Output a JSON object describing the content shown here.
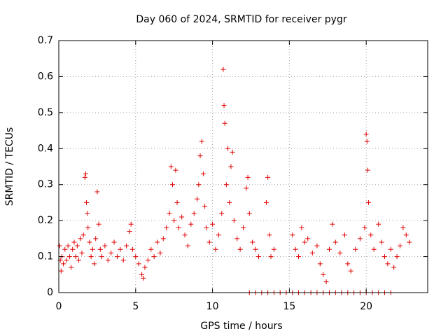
{
  "chart_data": {
    "type": "scatter",
    "title": "Day 060 of 2024, SRMTID for receiver pygr",
    "xlabel": "GPS time / hours",
    "ylabel": "SRMTID / TECUs",
    "xlim": [
      0,
      24
    ],
    "ylim": [
      0,
      0.7
    ],
    "xticks": [
      0,
      5,
      10,
      15,
      20
    ],
    "yticks": [
      0,
      0.1,
      0.2,
      0.3,
      0.4,
      0.5,
      0.6,
      0.7
    ],
    "grid": true,
    "marker": "+",
    "color": "#e00000",
    "series": [
      {
        "name": "SRMTID",
        "points": [
          [
            0.05,
            0.13
          ],
          [
            0.1,
            0.09
          ],
          [
            0.15,
            0.06
          ],
          [
            0.2,
            0.1
          ],
          [
            0.3,
            0.08
          ],
          [
            0.4,
            0.12
          ],
          [
            0.5,
            0.09
          ],
          [
            0.6,
            0.13
          ],
          [
            0.7,
            0.1
          ],
          [
            0.8,
            0.07
          ],
          [
            0.9,
            0.12
          ],
          [
            1.0,
            0.14
          ],
          [
            1.1,
            0.1
          ],
          [
            1.2,
            0.13
          ],
          [
            1.3,
            0.09
          ],
          [
            1.4,
            0.15
          ],
          [
            1.5,
            0.11
          ],
          [
            1.6,
            0.16
          ],
          [
            1.7,
            0.32
          ],
          [
            1.75,
            0.33
          ],
          [
            1.8,
            0.25
          ],
          [
            1.85,
            0.22
          ],
          [
            1.9,
            0.18
          ],
          [
            2.0,
            0.14
          ],
          [
            2.1,
            0.1
          ],
          [
            2.2,
            0.12
          ],
          [
            2.3,
            0.08
          ],
          [
            2.4,
            0.15
          ],
          [
            2.5,
            0.28
          ],
          [
            2.6,
            0.19
          ],
          [
            2.7,
            0.12
          ],
          [
            2.8,
            0.1
          ],
          [
            3.0,
            0.13
          ],
          [
            3.2,
            0.09
          ],
          [
            3.4,
            0.11
          ],
          [
            3.6,
            0.14
          ],
          [
            3.8,
            0.1
          ],
          [
            4.0,
            0.12
          ],
          [
            4.2,
            0.09
          ],
          [
            4.4,
            0.13
          ],
          [
            4.6,
            0.17
          ],
          [
            4.7,
            0.19
          ],
          [
            4.8,
            0.12
          ],
          [
            5.0,
            0.1
          ],
          [
            5.2,
            0.08
          ],
          [
            5.4,
            0.05
          ],
          [
            5.5,
            0.04
          ],
          [
            5.6,
            0.07
          ],
          [
            5.8,
            0.09
          ],
          [
            6.0,
            0.12
          ],
          [
            6.2,
            0.1
          ],
          [
            6.4,
            0.14
          ],
          [
            6.6,
            0.11
          ],
          [
            6.8,
            0.15
          ],
          [
            7.0,
            0.18
          ],
          [
            7.2,
            0.22
          ],
          [
            7.3,
            0.35
          ],
          [
            7.4,
            0.3
          ],
          [
            7.5,
            0.2
          ],
          [
            7.6,
            0.34
          ],
          [
            7.7,
            0.25
          ],
          [
            7.8,
            0.18
          ],
          [
            8.0,
            0.21
          ],
          [
            8.2,
            0.16
          ],
          [
            8.4,
            0.13
          ],
          [
            8.6,
            0.19
          ],
          [
            8.8,
            0.22
          ],
          [
            9.0,
            0.26
          ],
          [
            9.1,
            0.3
          ],
          [
            9.2,
            0.38
          ],
          [
            9.3,
            0.42
          ],
          [
            9.4,
            0.33
          ],
          [
            9.5,
            0.24
          ],
          [
            9.6,
            0.18
          ],
          [
            9.8,
            0.14
          ],
          [
            10.0,
            0.19
          ],
          [
            10.2,
            0.12
          ],
          [
            10.4,
            0.16
          ],
          [
            10.6,
            0.22
          ],
          [
            10.7,
            0.62
          ],
          [
            10.75,
            0.52
          ],
          [
            10.8,
            0.47
          ],
          [
            10.9,
            0.3
          ],
          [
            11.0,
            0.4
          ],
          [
            11.1,
            0.25
          ],
          [
            11.2,
            0.35
          ],
          [
            11.3,
            0.39
          ],
          [
            11.4,
            0.2
          ],
          [
            11.6,
            0.15
          ],
          [
            11.8,
            0.12
          ],
          [
            12.0,
            0.18
          ],
          [
            12.2,
            0.29
          ],
          [
            12.3,
            0.32
          ],
          [
            12.4,
            0.22
          ],
          [
            12.6,
            0.14
          ],
          [
            12.8,
            0.12
          ],
          [
            13.0,
            0.1
          ],
          [
            13.5,
            0.25
          ],
          [
            13.6,
            0.32
          ],
          [
            13.7,
            0.16
          ],
          [
            13.8,
            0.1
          ],
          [
            14.0,
            0.12
          ],
          [
            15.2,
            0.16
          ],
          [
            15.4,
            0.12
          ],
          [
            15.6,
            0.1
          ],
          [
            15.8,
            0.18
          ],
          [
            16.0,
            0.14
          ],
          [
            16.2,
            0.15
          ],
          [
            16.5,
            0.11
          ],
          [
            16.8,
            0.13
          ],
          [
            17.0,
            0.08
          ],
          [
            17.2,
            0.05
          ],
          [
            17.4,
            0.03
          ],
          [
            17.6,
            0.12
          ],
          [
            17.8,
            0.19
          ],
          [
            18.0,
            0.14
          ],
          [
            18.3,
            0.11
          ],
          [
            18.6,
            0.16
          ],
          [
            18.8,
            0.08
          ],
          [
            19.0,
            0.06
          ],
          [
            19.3,
            0.12
          ],
          [
            19.6,
            0.15
          ],
          [
            19.9,
            0.18
          ],
          [
            20.0,
            0.44
          ],
          [
            20.05,
            0.42
          ],
          [
            20.1,
            0.34
          ],
          [
            20.15,
            0.25
          ],
          [
            20.3,
            0.16
          ],
          [
            20.5,
            0.12
          ],
          [
            20.8,
            0.19
          ],
          [
            21.0,
            0.14
          ],
          [
            21.2,
            0.1
          ],
          [
            21.4,
            0.08
          ],
          [
            21.6,
            0.12
          ],
          [
            21.8,
            0.07
          ],
          [
            22.0,
            0.1
          ],
          [
            22.2,
            0.13
          ],
          [
            22.4,
            0.18
          ],
          [
            22.6,
            0.16
          ],
          [
            22.8,
            0.14
          ],
          [
            12.4,
            0.0
          ],
          [
            12.8,
            0.0
          ],
          [
            13.2,
            0.0
          ],
          [
            13.6,
            0.0
          ],
          [
            14.0,
            0.0
          ],
          [
            14.4,
            0.0
          ],
          [
            14.8,
            0.0
          ],
          [
            15.2,
            0.0
          ],
          [
            15.6,
            0.0
          ],
          [
            16.0,
            0.0
          ],
          [
            16.4,
            0.0
          ],
          [
            16.8,
            0.0
          ],
          [
            17.2,
            0.0
          ],
          [
            17.6,
            0.0
          ],
          [
            18.0,
            0.0
          ],
          [
            18.4,
            0.0
          ],
          [
            18.8,
            0.0
          ],
          [
            19.2,
            0.0
          ],
          [
            19.6,
            0.0
          ],
          [
            20.0,
            0.0
          ],
          [
            20.4,
            0.0
          ],
          [
            20.8,
            0.0
          ],
          [
            21.2,
            0.0
          ],
          [
            21.6,
            0.0
          ]
        ]
      }
    ]
  }
}
